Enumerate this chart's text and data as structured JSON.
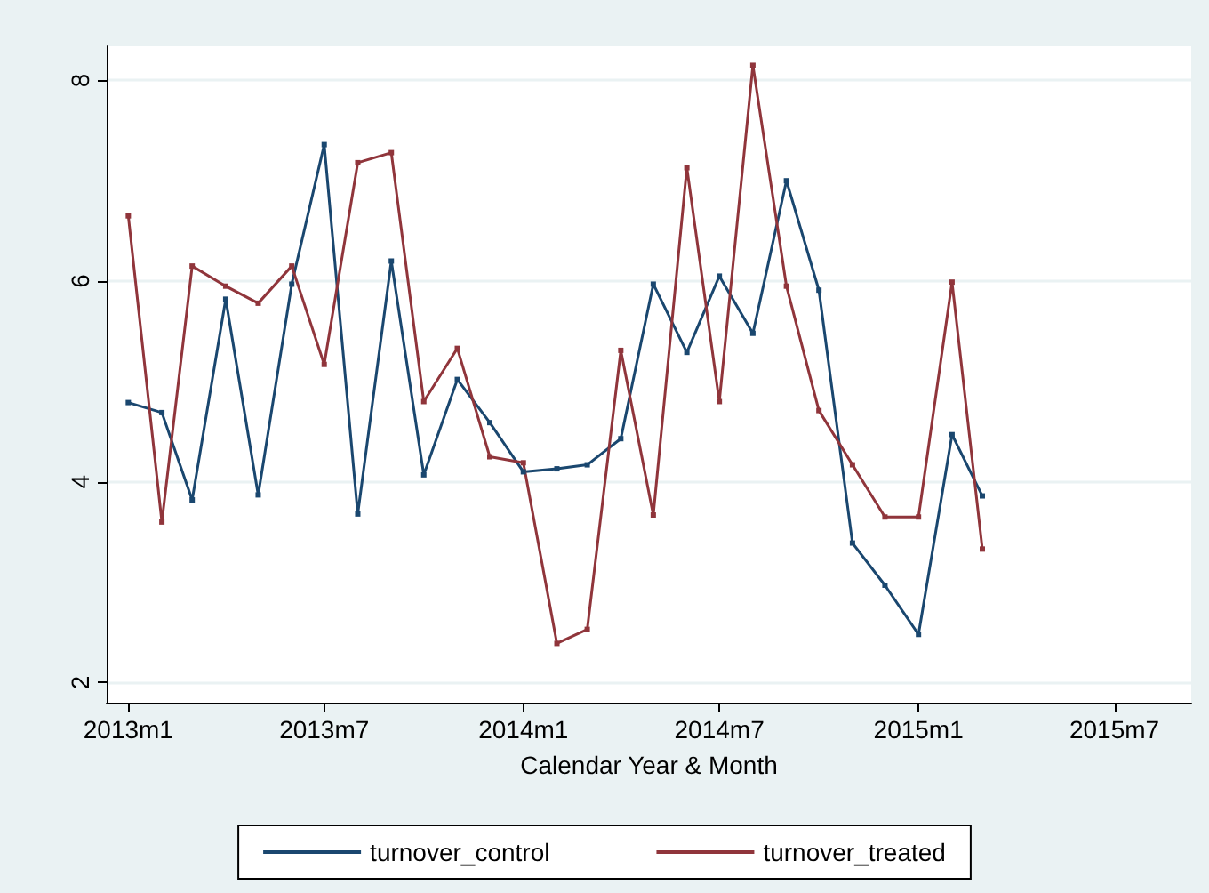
{
  "chart_data": {
    "type": "line",
    "xlabel": "Calendar Year & Month",
    "x": [
      "2013-01",
      "2013-02",
      "2013-03",
      "2013-04",
      "2013-05",
      "2013-06",
      "2013-07",
      "2013-08",
      "2013-09",
      "2013-10",
      "2013-11",
      "2013-12",
      "2014-01",
      "2014-02",
      "2014-03",
      "2014-04",
      "2014-05",
      "2014-06",
      "2014-07",
      "2014-08",
      "2014-09",
      "2014-10",
      "2014-11",
      "2014-12",
      "2015-01",
      "2015-02",
      "2015-03"
    ],
    "series": [
      {
        "name": "turnover_control",
        "color": "#1a476f",
        "values": [
          4.79,
          4.69,
          3.82,
          5.82,
          3.87,
          5.97,
          7.36,
          3.68,
          6.2,
          4.07,
          5.02,
          4.59,
          4.1,
          4.13,
          4.17,
          4.43,
          5.97,
          5.29,
          6.05,
          5.48,
          7.0,
          5.91,
          3.39,
          2.97,
          2.48,
          4.47,
          3.86
        ]
      },
      {
        "name": "turnover_treated",
        "color": "#90353b",
        "values": [
          6.65,
          3.6,
          6.15,
          5.95,
          5.78,
          6.15,
          5.17,
          7.18,
          7.28,
          4.8,
          5.33,
          4.25,
          4.19,
          2.39,
          2.53,
          5.31,
          3.67,
          7.13,
          4.8,
          8.15,
          5.95,
          4.71,
          4.17,
          3.65,
          3.65,
          5.99,
          3.33
        ]
      }
    ],
    "xlim": [
      "2012-12-12",
      "2015-09-10"
    ],
    "xticks": [
      {
        "value": "2013-01",
        "label": "2013m1"
      },
      {
        "value": "2013-07",
        "label": "2013m7"
      },
      {
        "value": "2014-01",
        "label": "2014m1"
      },
      {
        "value": "2014-07",
        "label": "2014m7"
      },
      {
        "value": "2015-01",
        "label": "2015m1"
      },
      {
        "value": "2015-07",
        "label": "2015m7"
      }
    ],
    "ylim": [
      1.8,
      8.34
    ],
    "yticks": [
      2,
      4,
      6,
      8
    ],
    "grid": "y",
    "legend": "bottom",
    "marker": "square",
    "line_style": "solid"
  }
}
